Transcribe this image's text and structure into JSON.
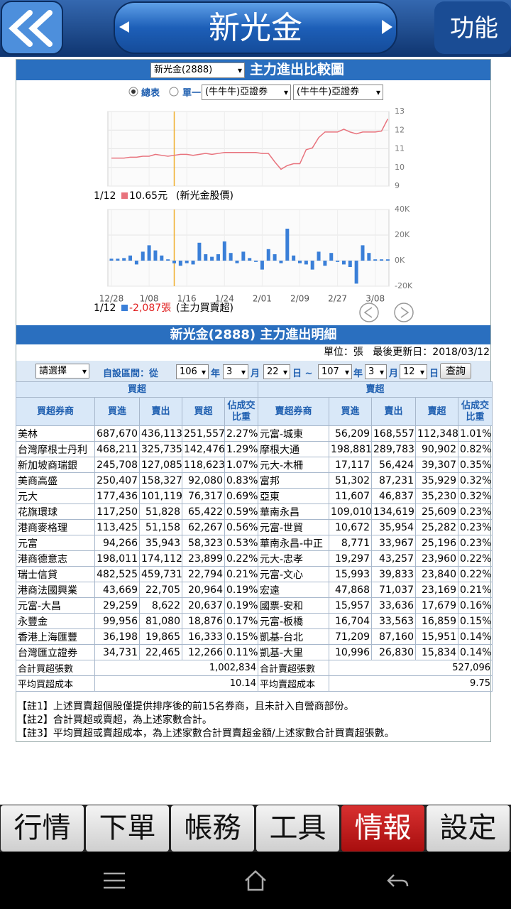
{
  "nav": {
    "title": "新光金",
    "function": "功能"
  },
  "chart_header": {
    "stock": "新光金(2888)",
    "title": "主力進出比較圖"
  },
  "options": {
    "total": "總表",
    "single": "單一",
    "broker1": "(牛牛牛)亞證券",
    "broker2": "(牛牛牛)亞證券"
  },
  "chart_data": {
    "type": "combo",
    "categories": [
      "12/28",
      null,
      null,
      null,
      null,
      null,
      "1/08",
      null,
      null,
      null,
      null,
      null,
      "1/16",
      null,
      null,
      null,
      null,
      null,
      "1/24",
      null,
      null,
      null,
      null,
      null,
      "2/01",
      null,
      null,
      null,
      null,
      null,
      "2/09",
      null,
      null,
      null,
      null,
      null,
      "2/27",
      null,
      null,
      null,
      null,
      null,
      "3/08",
      null,
      null
    ],
    "series": [
      {
        "name": "(新光金股價)",
        "type": "line",
        "color": "#e8737d",
        "values": [
          10.5,
          10.5,
          10.5,
          10.55,
          10.55,
          10.6,
          10.6,
          10.7,
          10.65,
          10.6,
          10.65,
          10.7,
          10.7,
          10.65,
          10.7,
          10.75,
          10.7,
          10.75,
          10.8,
          10.8,
          10.8,
          10.8,
          10.8,
          10.8,
          10.75,
          10.75,
          10.3,
          9.9,
          10.1,
          10.2,
          10.2,
          10.95,
          11.05,
          11.6,
          11.9,
          11.9,
          11.9,
          12.05,
          11.9,
          11.8,
          11.9,
          11.9,
          11.9,
          11.95,
          12.6
        ]
      },
      {
        "name": "(主力買賣超)",
        "type": "bar",
        "axis": "y2",
        "color": "#3a7fd8",
        "values": [
          1500,
          1500,
          2000,
          4000,
          -3000,
          7000,
          12000,
          8000,
          4000,
          1000,
          -2087,
          -4000,
          -2000,
          -3000,
          14000,
          5000,
          3000,
          5000,
          15000,
          6000,
          -2000,
          7000,
          2000,
          -1000,
          -7000,
          9000,
          5000,
          -2000,
          25000,
          4000,
          -2000,
          -3000,
          -7000,
          7000,
          -4000,
          6000,
          -1000,
          -3000,
          -5000,
          -18000,
          12000,
          6000,
          1000,
          1000,
          1000
        ]
      }
    ],
    "legend": [
      {
        "date": "1/12",
        "value_label": "10.65元"
      },
      {
        "date": "1/12",
        "value_label": "-2,087張"
      }
    ],
    "cursor": 10,
    "cursor_color": "#f0b030",
    "ylim": [
      9,
      13
    ],
    "yticks": [
      9,
      10,
      11,
      12,
      13
    ],
    "y2lim": [
      -20000,
      40000
    ],
    "y2ticks": [
      {
        "value": -20000,
        "label": "-20K"
      },
      {
        "value": 0,
        "label": "0K"
      },
      {
        "value": 20000,
        "label": "20K"
      },
      {
        "value": 40000,
        "label": "40K"
      }
    ],
    "grid": true
  },
  "detail": {
    "title": "新光金(2888) 主力進出明細",
    "unit": "單位：張",
    "updated": "最後更新日：2018/03/12"
  },
  "filter": {
    "select": "請選擇",
    "range": "自設區間：從",
    "y1": "106",
    "yl1": "年",
    "m1": "3",
    "ml1": "月",
    "d1": "22",
    "dl1": "日 ~",
    "y2": "107",
    "yl2": "年",
    "m2": "3",
    "ml2": "月",
    "d2": "12",
    "dl2": "日",
    "query": "查詢"
  },
  "table": {
    "groups": [
      "買超",
      "賣超"
    ],
    "columns": [
      "買超券商",
      "買進",
      "賣出",
      "買超",
      "佔成交比重",
      "賣超券商",
      "買進",
      "賣出",
      "賣超",
      "佔成交比重"
    ],
    "rows": [
      [
        "美林",
        "687,670",
        "436,113",
        "251,557",
        "2.27%",
        "元富-城東",
        "56,209",
        "168,557",
        "112,348",
        "1.01%"
      ],
      [
        "台灣摩根士丹利",
        "468,211",
        "325,735",
        "142,476",
        "1.29%",
        "摩根大通",
        "198,881",
        "289,783",
        "90,902",
        "0.82%"
      ],
      [
        "新加坡商瑞銀",
        "245,708",
        "127,085",
        "118,623",
        "1.07%",
        "元大-木柵",
        "17,117",
        "56,424",
        "39,307",
        "0.35%"
      ],
      [
        "美商高盛",
        "250,407",
        "158,327",
        "92,080",
        "0.83%",
        "富邦",
        "51,302",
        "87,231",
        "35,929",
        "0.32%"
      ],
      [
        "元大",
        "177,436",
        "101,119",
        "76,317",
        "0.69%",
        "亞東",
        "11,607",
        "46,837",
        "35,230",
        "0.32%"
      ],
      [
        "花旗環球",
        "117,250",
        "51,828",
        "65,422",
        "0.59%",
        "華南永昌",
        "109,010",
        "134,619",
        "25,609",
        "0.23%"
      ],
      [
        "港商麥格理",
        "113,425",
        "51,158",
        "62,267",
        "0.56%",
        "元富-世貿",
        "10,672",
        "35,954",
        "25,282",
        "0.23%"
      ],
      [
        "元富",
        "94,266",
        "35,943",
        "58,323",
        "0.53%",
        "華南永昌-中正",
        "8,771",
        "33,967",
        "25,196",
        "0.23%"
      ],
      [
        "港商德意志",
        "198,011",
        "174,112",
        "23,899",
        "0.22%",
        "元大-忠孝",
        "19,297",
        "43,257",
        "23,960",
        "0.22%"
      ],
      [
        "瑞士信貸",
        "482,525",
        "459,731",
        "22,794",
        "0.21%",
        "元富-文心",
        "15,993",
        "39,833",
        "23,840",
        "0.22%"
      ],
      [
        "港商法國興業",
        "43,669",
        "22,705",
        "20,964",
        "0.19%",
        "宏遠",
        "47,868",
        "71,037",
        "23,169",
        "0.21%"
      ],
      [
        "元富-大昌",
        "29,259",
        "8,622",
        "20,637",
        "0.19%",
        "國票-安和",
        "15,957",
        "33,636",
        "17,679",
        "0.16%"
      ],
      [
        "永豐金",
        "99,956",
        "81,080",
        "18,876",
        "0.17%",
        "元富-板橋",
        "16,704",
        "33,563",
        "16,859",
        "0.15%"
      ],
      [
        "香港上海匯豐",
        "36,198",
        "19,865",
        "16,333",
        "0.15%",
        "凱基-台北",
        "71,209",
        "87,160",
        "15,951",
        "0.14%"
      ],
      [
        "台灣匯立證券",
        "34,731",
        "22,465",
        "12,266",
        "0.11%",
        "凱基-大里",
        "10,996",
        "26,830",
        "15,834",
        "0.14%"
      ]
    ],
    "totals": [
      [
        "合計買超張數",
        "1,002,834",
        "合計賣超張數",
        "527,096"
      ],
      [
        "平均買超成本",
        "10.14",
        "平均賣超成本",
        "9.75"
      ]
    ]
  },
  "notes": [
    "【註1】上述買賣超個股僅提供排序後的前15名券商，且未計入自營商部份。",
    "【註2】合計買超或賣超，為上述家數合計。",
    "【註3】平均買超或賣超成本，為上述家數合計買賣超金額/上述家數合計買賣超張數。"
  ],
  "tabs": [
    "行情",
    "下單",
    "帳務",
    "工具",
    "情報",
    "設定"
  ],
  "active_tab": 4
}
